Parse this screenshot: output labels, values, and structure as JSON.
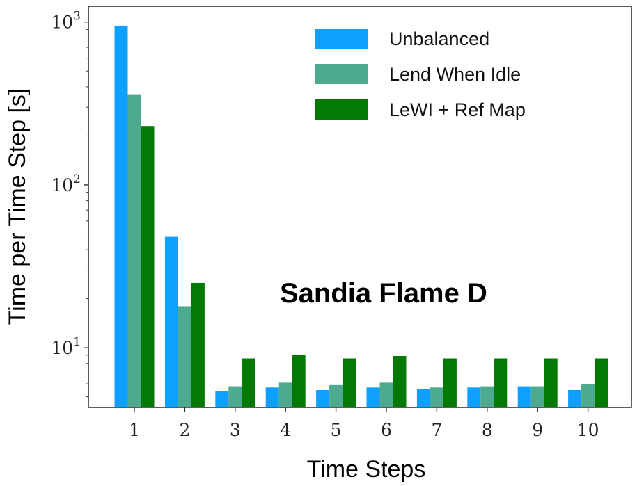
{
  "chart_data": {
    "type": "bar",
    "xlabel": "Time Steps",
    "ylabel": "Time per Time Step [s]",
    "yscale": "log",
    "ylim": [
      4.3,
      1250
    ],
    "grid": false,
    "legend_placement": "top-right",
    "annotation": "Sandia Flame D",
    "categories": [
      "1",
      "2",
      "3",
      "4",
      "5",
      "6",
      "7",
      "8",
      "9",
      "10"
    ],
    "y_ticks": [
      {
        "value": 10,
        "base": "10",
        "exp": "1"
      },
      {
        "value": 100,
        "base": "10",
        "exp": "2"
      },
      {
        "value": 1000,
        "base": "10",
        "exp": "3"
      }
    ],
    "series": [
      {
        "name": "Unbalanced",
        "color": "#0f9fff",
        "values": [
          950,
          48,
          5.4,
          5.7,
          5.5,
          5.7,
          5.6,
          5.7,
          5.8,
          5.5
        ]
      },
      {
        "name": "Lend When Idle",
        "color": "#4daa8f",
        "values": [
          360,
          18,
          5.8,
          6.1,
          5.9,
          6.1,
          5.7,
          5.8,
          5.8,
          6.0
        ]
      },
      {
        "name": "LeWI + Ref Map",
        "color": "#047a04",
        "values": [
          230,
          25,
          8.6,
          9.0,
          8.6,
          8.9,
          8.6,
          8.6,
          8.6,
          8.6
        ]
      }
    ]
  }
}
